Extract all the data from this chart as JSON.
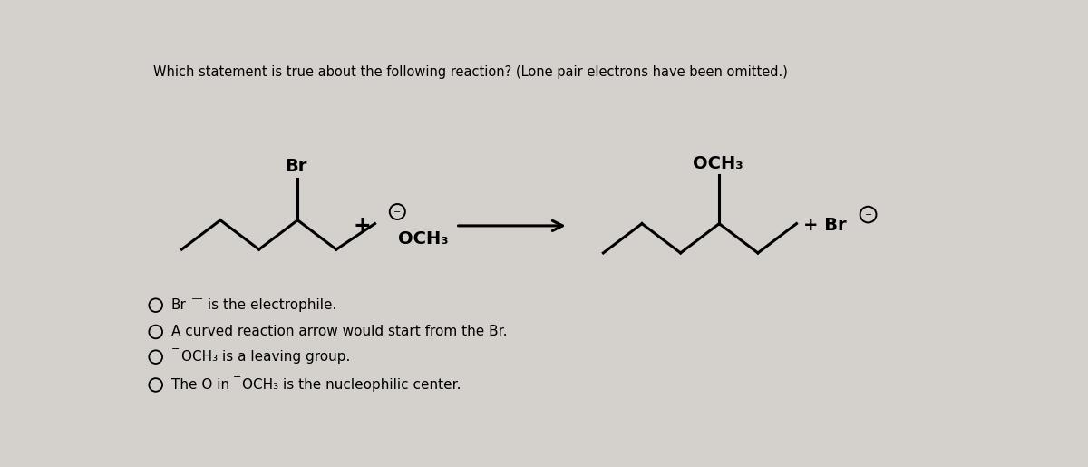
{
  "title": "Which statement is true about the following reaction? (Lone pair electrons have been omitted.)",
  "title_fontsize": 10.5,
  "bg_color": "#d4d0cb",
  "text_color": "#000000",
  "options_text": [
    [
      "Br",
      "⁾",
      " is the electrophile."
    ],
    [
      "A curved reaction arrow would start from the Br."
    ],
    [
      "⁾",
      "OCH₃ is a leaving group."
    ],
    [
      "The O in ",
      "⁾",
      "OCH₃ is the nucleophilic center."
    ]
  ]
}
